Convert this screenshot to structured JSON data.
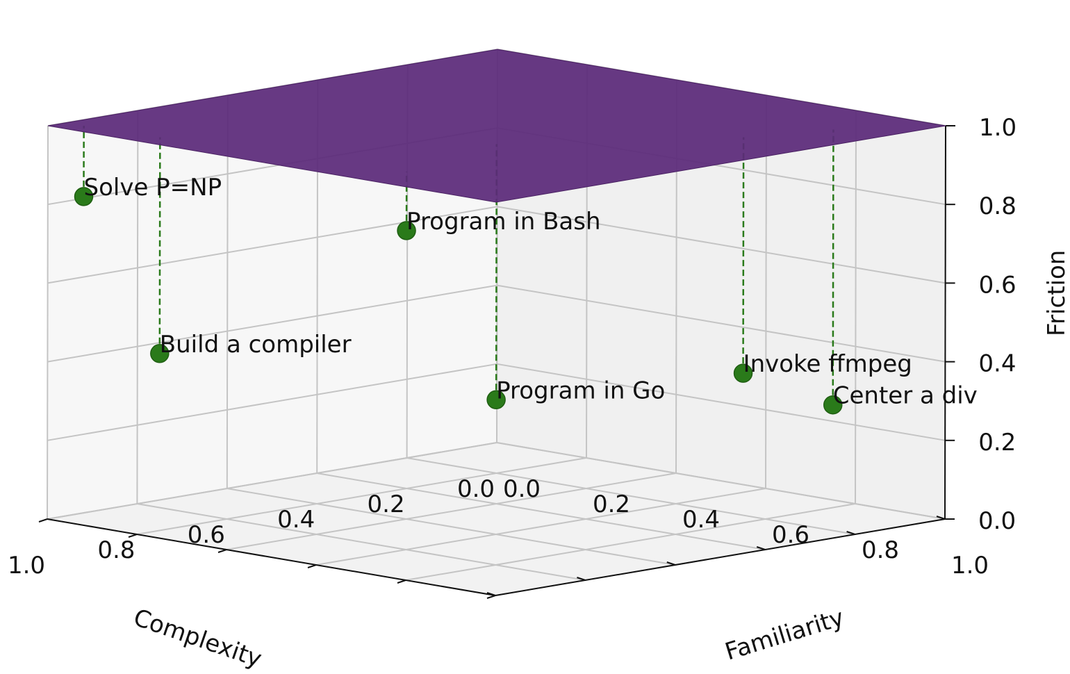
{
  "chart_data": {
    "type": "scatter",
    "projection": "3d",
    "axes": {
      "x": {
        "label": "Complexity",
        "range": [
          0,
          1
        ],
        "ticks": [
          "0.0",
          "0.2",
          "0.4",
          "0.6",
          "0.8",
          "1.0"
        ]
      },
      "y": {
        "label": "Familiarity",
        "range": [
          0,
          1
        ],
        "ticks": [
          "0.0",
          "0.2",
          "0.4",
          "0.6",
          "0.8",
          "1.0"
        ]
      },
      "z": {
        "label": "Friction",
        "range": [
          0,
          1
        ],
        "ticks": [
          "0.0",
          "0.2",
          "0.4",
          "0.6",
          "0.8",
          "1.0"
        ]
      }
    },
    "grid": true,
    "surface": {
      "z": 1.0,
      "color": "#5b2a7a"
    },
    "point_color": "#2a7a1a",
    "stem_color": "#2a7a1a",
    "points": [
      {
        "label": "Center a div",
        "x": 0.15,
        "y": 0.9,
        "z": 0.3
      },
      {
        "label": "Invoke ffmpeg",
        "x": 0.3,
        "y": 0.85,
        "z": 0.4
      },
      {
        "label": "Program in Go",
        "x": 0.62,
        "y": 0.62,
        "z": 0.35
      },
      {
        "label": "Program in Bash",
        "x": 0.9,
        "y": 0.7,
        "z": 0.85
      },
      {
        "label": "Build a compiler",
        "x": 0.95,
        "y": 0.2,
        "z": 0.45
      },
      {
        "label": "Solve P=NP",
        "x": 0.96,
        "y": 0.04,
        "z": 0.82
      }
    ]
  }
}
